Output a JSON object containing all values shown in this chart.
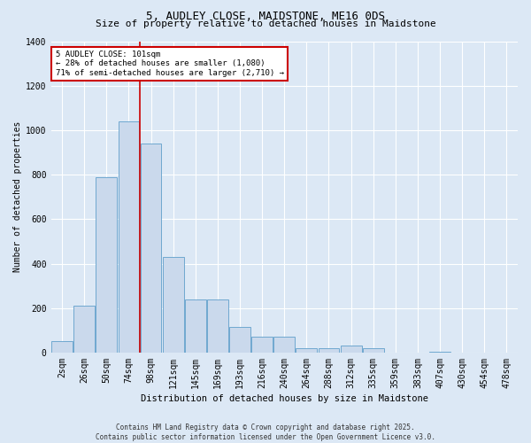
{
  "title": "5, AUDLEY CLOSE, MAIDSTONE, ME16 0DS",
  "subtitle": "Size of property relative to detached houses in Maidstone",
  "xlabel": "Distribution of detached houses by size in Maidstone",
  "ylabel": "Number of detached properties",
  "footer_line1": "Contains HM Land Registry data © Crown copyright and database right 2025.",
  "footer_line2": "Contains public sector information licensed under the Open Government Licence v3.0.",
  "bar_labels": [
    "2sqm",
    "26sqm",
    "50sqm",
    "74sqm",
    "98sqm",
    "121sqm",
    "145sqm",
    "169sqm",
    "193sqm",
    "216sqm",
    "240sqm",
    "264sqm",
    "288sqm",
    "312sqm",
    "335sqm",
    "359sqm",
    "383sqm",
    "407sqm",
    "430sqm",
    "454sqm",
    "478sqm"
  ],
  "bar_values": [
    50,
    210,
    790,
    1040,
    940,
    430,
    240,
    240,
    115,
    70,
    70,
    20,
    20,
    30,
    20,
    0,
    0,
    5,
    0,
    0,
    0
  ],
  "bar_color": "#cad9ec",
  "bar_edge_color": "#6fa8d0",
  "background_color": "#dce8f5",
  "plot_bg_color": "#dce8f5",
  "red_line_index": 4,
  "annotation_text": "5 AUDLEY CLOSE: 101sqm\n← 28% of detached houses are smaller (1,080)\n71% of semi-detached houses are larger (2,710) →",
  "annotation_box_facecolor": "#ffffff",
  "annotation_border_color": "#cc0000",
  "red_line_color": "#cc0000",
  "ylim": [
    0,
    1400
  ],
  "yticks": [
    0,
    200,
    400,
    600,
    800,
    1000,
    1200,
    1400
  ],
  "grid_color": "#c0d0e4",
  "title_fontsize": 9,
  "subtitle_fontsize": 8,
  "tick_fontsize": 7,
  "ylabel_fontsize": 7,
  "xlabel_fontsize": 7.5,
  "annotation_fontsize": 6.5,
  "footer_fontsize": 5.5
}
